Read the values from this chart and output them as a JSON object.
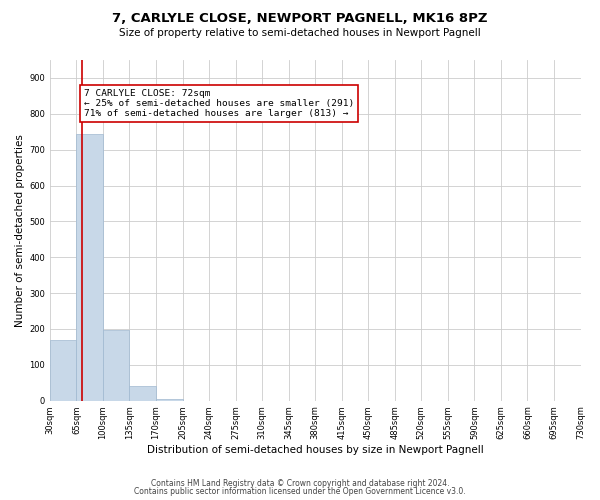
{
  "title": "7, CARLYLE CLOSE, NEWPORT PAGNELL, MK16 8PZ",
  "subtitle": "Size of property relative to semi-detached houses in Newport Pagnell",
  "xlabel": "Distribution of semi-detached houses by size in Newport Pagnell",
  "ylabel": "Number of semi-detached properties",
  "footnote1": "Contains HM Land Registry data © Crown copyright and database right 2024.",
  "footnote2": "Contains public sector information licensed under the Open Government Licence v3.0.",
  "annotation_title": "7 CARLYLE CLOSE: 72sqm",
  "annotation_line1": "← 25% of semi-detached houses are smaller (291)",
  "annotation_line2": "71% of semi-detached houses are larger (813) →",
  "bar_color": "#c8d8e8",
  "bar_edge_color": "#a0b8d0",
  "property_line_color": "#cc0000",
  "annotation_box_color": "#ffffff",
  "annotation_box_edge": "#cc0000",
  "bin_edges": [
    30,
    65,
    100,
    135,
    170,
    205,
    240,
    275,
    310,
    345,
    380,
    415,
    450,
    485,
    520,
    555,
    590,
    625,
    660,
    695,
    730
  ],
  "bin_labels": [
    "30sqm",
    "65sqm",
    "100sqm",
    "135sqm",
    "170sqm",
    "205sqm",
    "240sqm",
    "275sqm",
    "310sqm",
    "345sqm",
    "380sqm",
    "415sqm",
    "450sqm",
    "485sqm",
    "520sqm",
    "555sqm",
    "590sqm",
    "625sqm",
    "660sqm",
    "695sqm",
    "730sqm"
  ],
  "bar_heights": [
    170,
    743,
    197,
    40,
    5,
    0,
    0,
    0,
    0,
    0,
    0,
    0,
    0,
    0,
    0,
    0,
    0,
    0,
    0,
    0
  ],
  "property_size": 72,
  "ylim": [
    0,
    950
  ],
  "yticks": [
    0,
    100,
    200,
    300,
    400,
    500,
    600,
    700,
    800,
    900
  ],
  "background_color": "#ffffff",
  "grid_color": "#cccccc",
  "title_fontsize": 9.5,
  "subtitle_fontsize": 7.5,
  "ylabel_fontsize": 7.5,
  "xlabel_fontsize": 7.5,
  "tick_fontsize": 6.0,
  "footnote_fontsize": 5.5
}
